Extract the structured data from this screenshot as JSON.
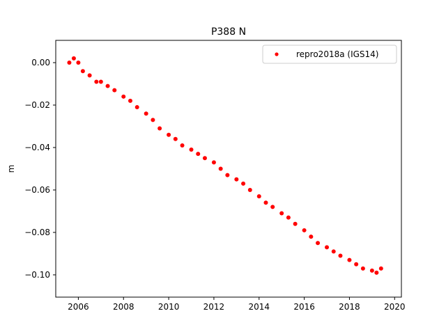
{
  "chart_data": {
    "type": "scatter",
    "title": "P388 N",
    "xlabel": "",
    "ylabel": "m",
    "xlim": [
      2005.0,
      2020.3
    ],
    "ylim": [
      -0.1105,
      0.0105
    ],
    "x_ticks": [
      2006,
      2008,
      2010,
      2012,
      2014,
      2016,
      2018,
      2020
    ],
    "x_tick_labels": [
      "2006",
      "2008",
      "2010",
      "2012",
      "2014",
      "2016",
      "2018",
      "2020"
    ],
    "y_ticks": [
      0.0,
      -0.02,
      -0.04,
      -0.06,
      -0.08,
      -0.1
    ],
    "y_tick_labels": [
      "0.00",
      "−0.02",
      "−0.04",
      "−0.06",
      "−0.08",
      "−0.10"
    ],
    "grid": false,
    "legend_position": "top-right",
    "series": [
      {
        "name": "repro2018a (IGS14)",
        "color": "#ff0000",
        "marker": "circle",
        "x": [
          2005.6,
          2005.8,
          2006.0,
          2006.2,
          2006.5,
          2006.8,
          2007.0,
          2007.3,
          2007.6,
          2008.0,
          2008.3,
          2008.6,
          2009.0,
          2009.3,
          2009.6,
          2010.0,
          2010.3,
          2010.6,
          2011.0,
          2011.3,
          2011.6,
          2012.0,
          2012.3,
          2012.6,
          2013.0,
          2013.3,
          2013.6,
          2014.0,
          2014.3,
          2014.6,
          2015.0,
          2015.3,
          2015.6,
          2016.0,
          2016.3,
          2016.6,
          2017.0,
          2017.3,
          2017.6,
          2018.0,
          2018.3,
          2018.6,
          2019.0,
          2019.2,
          2019.4
        ],
        "y": [
          0.0,
          0.002,
          0.0,
          -0.004,
          -0.006,
          -0.009,
          -0.009,
          -0.011,
          -0.013,
          -0.016,
          -0.018,
          -0.021,
          -0.024,
          -0.027,
          -0.031,
          -0.034,
          -0.036,
          -0.039,
          -0.041,
          -0.043,
          -0.045,
          -0.047,
          -0.05,
          -0.053,
          -0.055,
          -0.057,
          -0.06,
          -0.063,
          -0.066,
          -0.068,
          -0.071,
          -0.073,
          -0.076,
          -0.079,
          -0.082,
          -0.085,
          -0.087,
          -0.089,
          -0.091,
          -0.093,
          -0.095,
          -0.097,
          -0.098,
          -0.099,
          -0.097
        ]
      }
    ]
  }
}
